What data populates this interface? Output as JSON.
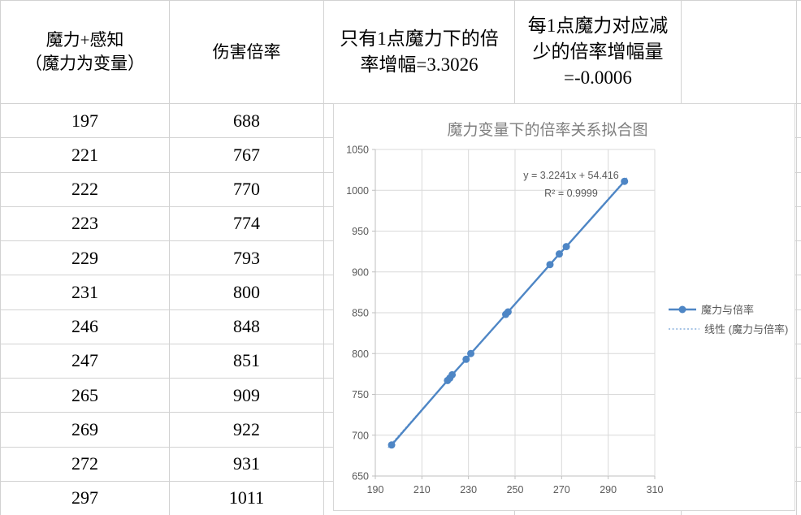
{
  "sheet": {
    "headers": [
      "魔力+感知\n（魔力为变量）",
      "伤害倍率",
      "只有1点魔力下的倍\n率增幅=3.3026",
      "每1点魔力对应减\n少的倍率增幅量\n=-0.0006",
      "",
      ""
    ],
    "rows": [
      [
        "197",
        "688"
      ],
      [
        "221",
        "767"
      ],
      [
        "222",
        "770"
      ],
      [
        "223",
        "774"
      ],
      [
        "229",
        "793"
      ],
      [
        "231",
        "800"
      ],
      [
        "246",
        "848"
      ],
      [
        "247",
        "851"
      ],
      [
        "265",
        "909"
      ],
      [
        "269",
        "922"
      ],
      [
        "272",
        "931"
      ],
      [
        "297",
        "1011"
      ]
    ]
  },
  "chart_data": {
    "type": "scatter",
    "title": "魔力变量下的倍率关系拟合图",
    "xlabel": "",
    "ylabel": "",
    "xlim": [
      190,
      310
    ],
    "ylim": [
      650,
      1050
    ],
    "xticks": [
      190,
      210,
      230,
      250,
      270,
      290,
      310
    ],
    "yticks": [
      650,
      700,
      750,
      800,
      850,
      900,
      950,
      1000,
      1050
    ],
    "grid": true,
    "legend_position": "right",
    "series": [
      {
        "name": "魔力与倍率",
        "x": [
          197,
          221,
          222,
          223,
          229,
          231,
          246,
          247,
          265,
          269,
          272,
          297
        ],
        "y": [
          688,
          767,
          770,
          774,
          793,
          800,
          848,
          851,
          909,
          922,
          931,
          1011
        ]
      }
    ],
    "trendline": {
      "name": "线性 (魔力与倍率)",
      "equation": "y = 3.2241x + 54.416",
      "r2_label": "R² = 0.9999",
      "slope": 3.2241,
      "intercept": 54.416
    },
    "colors": {
      "series": "#4E86C5",
      "trendline": "#8AB1DE",
      "grid": "#D9D9D9",
      "axis": "#BFBFBF",
      "tick_text": "#595959",
      "title_text": "#7F7F7F",
      "legend_text": "#595959"
    }
  }
}
